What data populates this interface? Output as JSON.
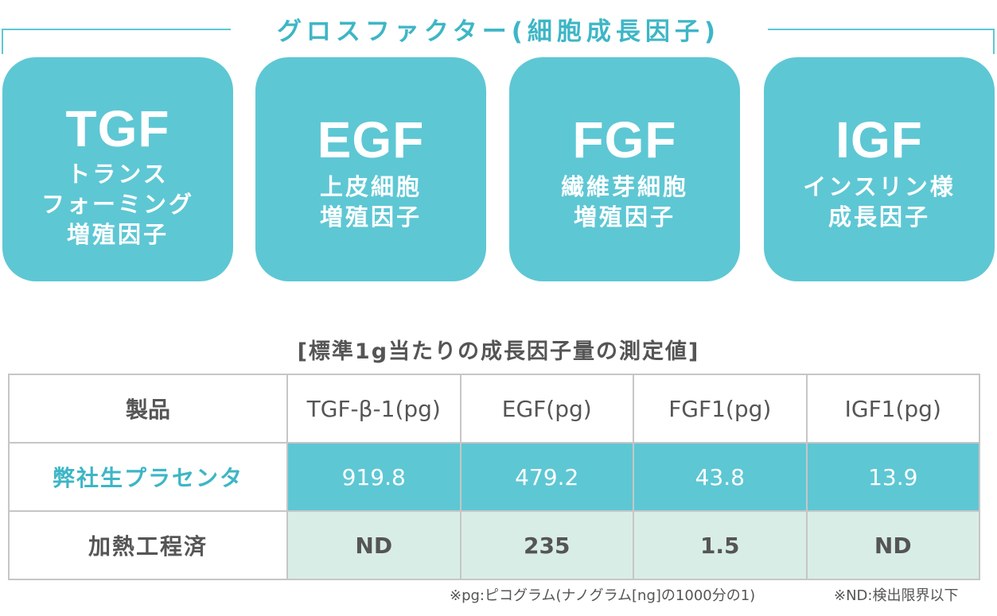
{
  "section": {
    "title": "グロスファクター(細胞成長因子)"
  },
  "cards": [
    {
      "abbr": "TGF",
      "lines": [
        "トランス",
        "フォーミング",
        "増殖因子"
      ]
    },
    {
      "abbr": "EGF",
      "lines": [
        "上皮細胞",
        "増殖因子"
      ]
    },
    {
      "abbr": "FGF",
      "lines": [
        "繊維芽細胞",
        "増殖因子"
      ]
    },
    {
      "abbr": "IGF",
      "lines": [
        "インスリン様",
        "成長因子"
      ]
    }
  ],
  "table": {
    "caption": "[標準1g当たりの成長因子量の測定値]",
    "headers": [
      "製品",
      "TGF-β-1(pg)",
      "EGF(pg)",
      "FGF1(pg)",
      "IGF1(pg)"
    ],
    "rows": [
      {
        "label": "弊社生プラセンタ",
        "values": [
          "919.8",
          "479.2",
          "43.8",
          "13.9"
        ]
      },
      {
        "label": "加熱工程済",
        "values": [
          "ND",
          "235",
          "1.5",
          "ND"
        ]
      }
    ]
  },
  "footnotes": {
    "pg": "※pg:ピコグラム(ナノグラム[ng]の1000分の1)",
    "nd": "※ND:検出限界以下"
  },
  "colors": {
    "accent": "#5ec7d4",
    "accent_text": "#3db6c6",
    "heat_row_bg": "#d9ede7"
  }
}
